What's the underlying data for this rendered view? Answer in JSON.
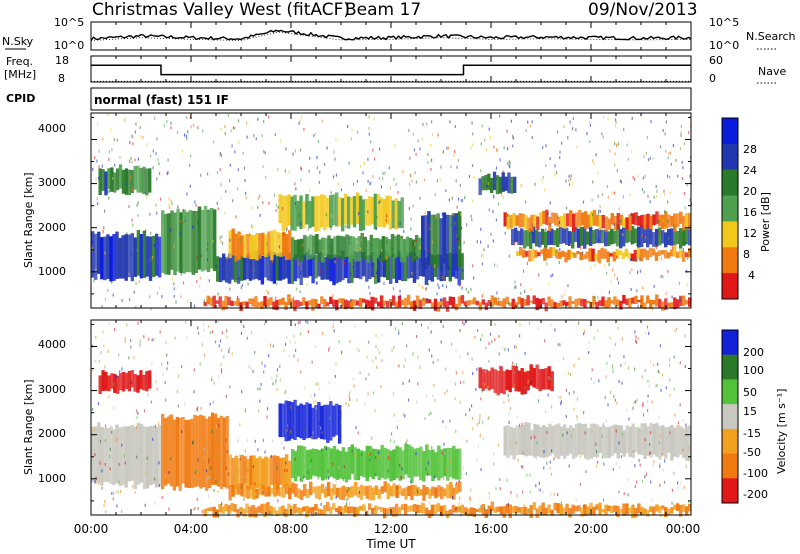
{
  "header": {
    "station": "Christmas Valley West (fitACF)",
    "beam": "Beam 17",
    "date": "09/Nov/2013"
  },
  "noise_panel": {
    "left_label": "N.Sky",
    "right_label": "N.Search",
    "ticks_left": [
      "10^5",
      "10^0"
    ],
    "ticks_right": [
      "10^5",
      "10^0"
    ]
  },
  "freq_panel": {
    "left_label_line1": "Freq.",
    "left_label_line2": "[MHz]",
    "right_label": "Nave",
    "ticks_left": [
      "18",
      "8"
    ],
    "ticks_right": [
      "60",
      "0"
    ]
  },
  "cpid": {
    "label": "CPID",
    "value": "normal (fast) 151 IF"
  },
  "power_panel": {
    "ylabel": "Slant Range [km]",
    "yticks": [
      "4000",
      "3000",
      "2000",
      "1000"
    ],
    "colorbar_label": "Power [dB]",
    "colorbar_ticks": [
      "28",
      "24",
      "20",
      "16",
      "12",
      "8",
      "4"
    ],
    "colors": [
      "#0a1cdc",
      "#2238b0",
      "#2a7a2a",
      "#4fa04f",
      "#f2c81c",
      "#f07a10",
      "#e01818"
    ]
  },
  "velocity_panel": {
    "ylabel": "Slant Range [km]",
    "yticks": [
      "4000",
      "3000",
      "2000",
      "1000"
    ],
    "colorbar_label": "Velocity [m s⁻¹]",
    "colorbar_ticks": [
      "200",
      "100",
      "50",
      "15",
      "-15",
      "-50",
      "-100",
      "-200"
    ],
    "colors": [
      "#1222d8",
      "#2a7a2a",
      "#52c23a",
      "#c8c8c0",
      "#f2a020",
      "#f07a10",
      "#e01818"
    ]
  },
  "xaxis": {
    "label": "Time UT",
    "ticks": [
      "00:00",
      "04:00",
      "08:00",
      "12:00",
      "16:00",
      "20:00",
      "00:00"
    ]
  },
  "chart_data": [
    {
      "type": "line",
      "title": "N.Sky / N.Search",
      "x_range_hours": [
        0,
        24
      ],
      "ylim": [
        "10^0",
        "10^5"
      ],
      "series": [
        {
          "name": "N.Sky",
          "x": [
            0,
            2,
            4,
            6,
            7.5,
            10,
            12,
            14,
            16,
            18,
            20,
            22,
            24
          ],
          "y": [
            2,
            2.5,
            2.2,
            2,
            3.5,
            2.1,
            2.2,
            2.5,
            2.2,
            2.3,
            2.2,
            2.1,
            2.2
          ]
        }
      ]
    },
    {
      "type": "line",
      "title": "Freq. / Nave",
      "x_range_hours": [
        0,
        24
      ],
      "series": [
        {
          "name": "Freq.",
          "x": [
            0,
            2.8,
            2.8,
            14.9,
            14.9,
            24
          ],
          "y": [
            15,
            15,
            10,
            10,
            15,
            15
          ]
        },
        {
          "name": "Nave",
          "x": [
            0,
            24
          ],
          "y": [
            19,
            19
          ]
        }
      ]
    },
    {
      "type": "heatmap",
      "title": "Power",
      "xlabel": "Time UT",
      "ylabel": "Slant Range [km]",
      "x_range_hours": [
        0,
        24
      ],
      "y_range_km": [
        180,
        4600
      ],
      "colorbar": {
        "label": "Power [dB]",
        "range": [
          0,
          30
        ],
        "ticks": [
          4,
          8,
          12,
          16,
          20,
          24,
          28
        ]
      },
      "bands": [
        {
          "t0": 0.0,
          "t1": 2.8,
          "r0": 850,
          "r1": 1850,
          "value": 24
        },
        {
          "t0": 0.3,
          "t1": 2.4,
          "r0": 2800,
          "r1": 3350,
          "value": 20
        },
        {
          "t0": 2.8,
          "t1": 5.0,
          "r0": 1000,
          "r1": 2400,
          "value": 18
        },
        {
          "t0": 5.0,
          "t1": 14.9,
          "r0": 800,
          "r1": 1400,
          "value": 24
        },
        {
          "t0": 5.5,
          "t1": 8.0,
          "r0": 1300,
          "r1": 1900,
          "value": 10
        },
        {
          "t0": 8.0,
          "t1": 13.2,
          "r0": 1300,
          "r1": 1800,
          "value": 18
        },
        {
          "t0": 13.2,
          "t1": 14.8,
          "r0": 1100,
          "r1": 2300,
          "value": 22
        },
        {
          "t0": 7.5,
          "t1": 12.5,
          "r0": 2000,
          "r1": 2700,
          "value": 14
        },
        {
          "t0": 15.5,
          "t1": 17.0,
          "r0": 2800,
          "r1": 3200,
          "value": 22
        },
        {
          "t0": 16.8,
          "t1": 24.0,
          "r0": 1600,
          "r1": 2000,
          "value": 22
        },
        {
          "t0": 16.5,
          "t1": 24.0,
          "r0": 2000,
          "r1": 2300,
          "value": 8
        },
        {
          "t0": 17.0,
          "t1": 24.0,
          "r0": 1300,
          "r1": 1500,
          "value": 8
        },
        {
          "t0": 4.5,
          "t1": 24.0,
          "r0": 200,
          "r1": 380,
          "value": 6
        }
      ]
    },
    {
      "type": "heatmap",
      "title": "Velocity",
      "xlabel": "Time UT",
      "ylabel": "Slant Range [km]",
      "x_range_hours": [
        0,
        24
      ],
      "y_range_km": [
        180,
        4600
      ],
      "colorbar": {
        "label": "Velocity [m s⁻¹]",
        "ticks": [
          200,
          100,
          50,
          15,
          -15,
          -50,
          -100,
          -200
        ]
      },
      "bands": [
        {
          "t0": 0.0,
          "t1": 2.8,
          "r0": 850,
          "r1": 2200,
          "value": 0
        },
        {
          "t0": 0.3,
          "t1": 2.4,
          "r0": 3000,
          "r1": 3400,
          "value": -200
        },
        {
          "t0": 2.8,
          "t1": 5.5,
          "r0": 800,
          "r1": 2400,
          "value": -100
        },
        {
          "t0": 5.5,
          "t1": 8.0,
          "r0": 800,
          "r1": 1500,
          "value": -50
        },
        {
          "t0": 8.0,
          "t1": 14.8,
          "r0": 1000,
          "r1": 1700,
          "value": 50
        },
        {
          "t0": 7.5,
          "t1": 10.0,
          "r0": 1900,
          "r1": 2700,
          "value": 200
        },
        {
          "t0": 15.5,
          "t1": 18.5,
          "r0": 3000,
          "r1": 3500,
          "value": -200
        },
        {
          "t0": 16.5,
          "t1": 24.0,
          "r0": 1500,
          "r1": 2200,
          "value": 0
        },
        {
          "t0": 5.5,
          "t1": 14.8,
          "r0": 600,
          "r1": 850,
          "value": -50
        },
        {
          "t0": 4.5,
          "t1": 24.0,
          "r0": 200,
          "r1": 380,
          "value": -50
        }
      ]
    }
  ]
}
